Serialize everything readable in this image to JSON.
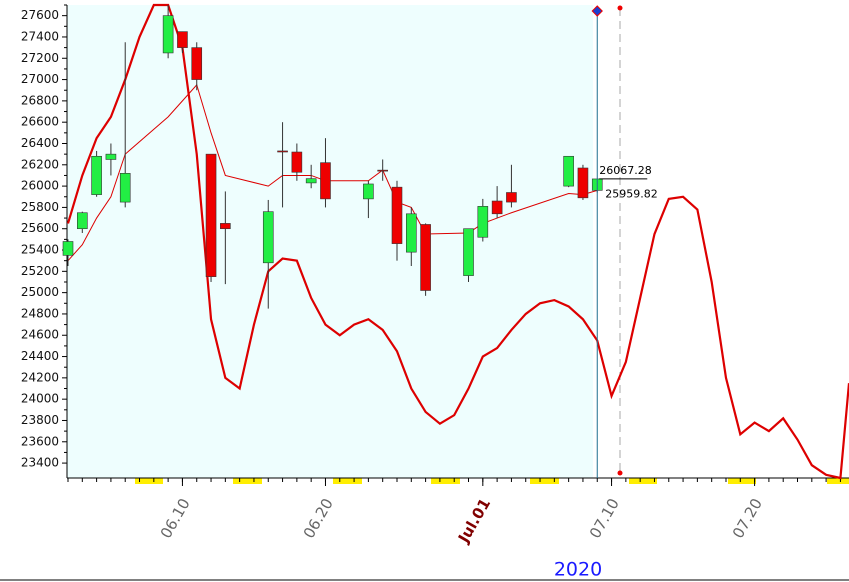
{
  "chart_data": {
    "type": "candlestick",
    "x": [
      2,
      3,
      4,
      5,
      6,
      9,
      10,
      11,
      12,
      13,
      16,
      17,
      18,
      19,
      20,
      23,
      24,
      25,
      26,
      27,
      30,
      31,
      32,
      33,
      37,
      38,
      39
    ],
    "open": [
      25350,
      25600,
      25920,
      26250,
      25850,
      27250,
      27450,
      27300,
      26300,
      25650,
      25280,
      26330,
      26320,
      26030,
      26220,
      25880,
      26150,
      25990,
      25380,
      25640,
      25160,
      25520,
      25860,
      25940,
      26000,
      26170,
      25960
    ],
    "high": [
      25500,
      25760,
      26330,
      26400,
      27350,
      27700,
      27450,
      27350,
      26300,
      25950,
      25870,
      26600,
      26400,
      26200,
      26450,
      26050,
      26250,
      26050,
      25800,
      25650,
      25600,
      25880,
      26000,
      26200,
      26280,
      26200,
      26070
    ],
    "low": [
      25250,
      25560,
      25900,
      26100,
      25800,
      27200,
      27250,
      26900,
      25100,
      25080,
      24850,
      25800,
      26050,
      25980,
      25800,
      25700,
      26050,
      25300,
      25250,
      24970,
      25100,
      25480,
      25700,
      25800,
      25990,
      25870,
      25940
    ],
    "close": [
      25480,
      25750,
      26280,
      26300,
      26120,
      27600,
      27300,
      27000,
      25150,
      25600,
      25760,
      26320,
      26130,
      26070,
      25880,
      26020,
      26150,
      25460,
      25740,
      25020,
      25600,
      25810,
      25740,
      25850,
      26280,
      25890,
      26067.28
    ],
    "up_color": "#22ee44",
    "down_color": "#ee0000",
    "lines": [
      {
        "color": "#dd0000",
        "width": 1,
        "x": [
          2,
          3,
          4,
          5,
          6,
          9,
          10,
          11,
          12,
          13,
          16,
          17,
          18,
          19,
          20,
          23,
          24,
          25,
          26,
          27,
          30,
          31,
          32,
          33,
          37,
          38,
          39
        ],
        "values": [
          25300,
          25450,
          25700,
          25900,
          26300,
          26650,
          26800,
          26950,
          26500,
          26100,
          26000,
          26100,
          26100,
          26100,
          26050,
          26050,
          26150,
          25850,
          25800,
          25550,
          25560,
          25650,
          25700,
          25750,
          25930,
          25920,
          25959.82
        ]
      },
      {
        "color": "#dd0000",
        "width": 2.2,
        "x": [
          2,
          3,
          4,
          5,
          6,
          7,
          8,
          9,
          10,
          11,
          12,
          13,
          14,
          15,
          16,
          17,
          18,
          19,
          20,
          21,
          22,
          23,
          24,
          25,
          26,
          27,
          28,
          29,
          30,
          31,
          32,
          33,
          34,
          35,
          36,
          37,
          38,
          39,
          40,
          41,
          42,
          43,
          44,
          45,
          46,
          47,
          48,
          49,
          50,
          51,
          52,
          53,
          54,
          55,
          56,
          56.6
        ],
        "values": [
          25650,
          26100,
          26450,
          26650,
          27000,
          27400,
          27700,
          27700,
          27300,
          26300,
          24750,
          24200,
          24100,
          24700,
          25200,
          25320,
          25300,
          24950,
          24700,
          24600,
          24700,
          24750,
          24650,
          24450,
          24100,
          23880,
          23770,
          23850,
          24100,
          24400,
          24480,
          24650,
          24800,
          24900,
          24930,
          24870,
          24750,
          24550,
          24030,
          24350,
          24950,
          25550,
          25880,
          25900,
          25780,
          25100,
          24200,
          23670,
          23780,
          23700,
          23820,
          23620,
          23380,
          23290,
          23260,
          24150
        ]
      }
    ],
    "xlim": [
      1.93,
      56.6
    ],
    "ylim": [
      23260,
      27700
    ],
    "yticks": [
      23400,
      23600,
      23800,
      24000,
      24200,
      24400,
      24600,
      24800,
      25000,
      25200,
      25400,
      25600,
      25800,
      26000,
      26200,
      26400,
      26600,
      26800,
      27000,
      27200,
      27400,
      27600
    ],
    "xticks": [
      {
        "value": 10,
        "label": "06.10"
      },
      {
        "value": 20,
        "label": "06.20"
      },
      {
        "value": 31,
        "label": "Jul.01",
        "color": "#800000"
      },
      {
        "value": 40,
        "label": "07.10"
      },
      {
        "value": 50,
        "label": "07.20"
      }
    ],
    "year_label": "2020"
  }
}
